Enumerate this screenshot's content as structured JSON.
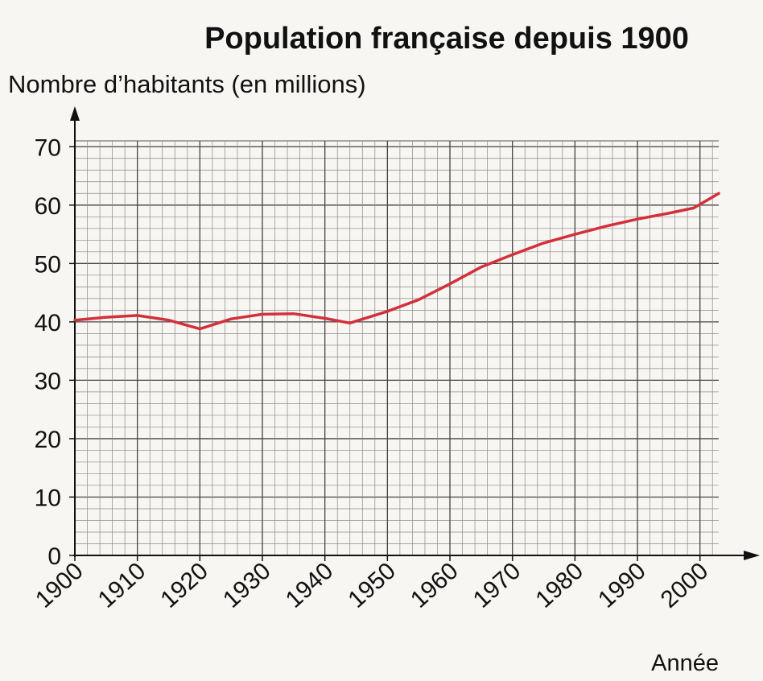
{
  "chart_data": {
    "type": "line",
    "title": "Population française depuis 1900",
    "ylabel": "Nombre d’habitants (en millions)",
    "xlabel": "Année",
    "xlim": [
      1900,
      2003
    ],
    "ylim": [
      0,
      71
    ],
    "xticks": [
      1900,
      1910,
      1920,
      1930,
      1940,
      1950,
      1960,
      1970,
      1980,
      1990,
      2000
    ],
    "yticks": [
      0,
      10,
      20,
      30,
      40,
      50,
      60,
      70
    ],
    "grid": true,
    "series_color": "#d4303a",
    "series": [
      {
        "x": [
          1900,
          1905,
          1910,
          1915,
          1920,
          1925,
          1930,
          1935,
          1940,
          1944,
          1950,
          1955,
          1960,
          1965,
          1970,
          1975,
          1980,
          1985,
          1990,
          1995,
          1999,
          2003
        ],
        "y": [
          40.3,
          40.8,
          41.1,
          40.3,
          38.8,
          40.5,
          41.3,
          41.4,
          40.6,
          39.8,
          41.8,
          43.8,
          46.5,
          49.4,
          51.5,
          53.5,
          55.0,
          56.4,
          57.6,
          58.6,
          59.5,
          62.0
        ]
      }
    ]
  }
}
